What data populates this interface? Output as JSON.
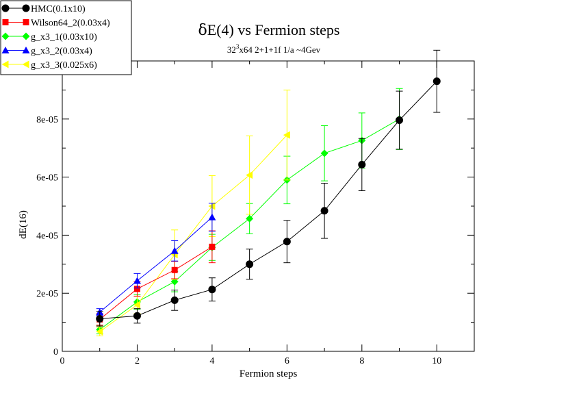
{
  "chart_data": {
    "type": "line",
    "title_symbol": "δ",
    "title_rest": "E(4) vs Fermion steps",
    "subtitle_base": "32",
    "subtitle_sup": "3",
    "subtitle_rest": "x64 2+1+1f 1/a ~4Gev",
    "xlabel": "Fermion steps",
    "ylabel": "dE(16)",
    "xlim": [
      0,
      11
    ],
    "ylim": [
      0,
      0.0001
    ],
    "xticks": [
      0,
      2,
      4,
      6,
      8,
      10
    ],
    "xtick_labels": [
      "0",
      "2",
      "4",
      "6",
      "8",
      "10"
    ],
    "yticks": [
      0,
      2e-05,
      4e-05,
      6e-05,
      8e-05
    ],
    "ytick_labels": [
      "0",
      "2e-05",
      "4e-05",
      "6e-05",
      "8e-05"
    ],
    "legend_position": "top-left",
    "series": [
      {
        "name": "HMC(0.1x10)",
        "color": "#000000",
        "marker": "circle",
        "x": [
          1,
          2,
          3,
          4,
          5,
          6,
          7,
          8,
          9,
          10
        ],
        "y": [
          1.12e-05,
          1.22e-05,
          1.76e-05,
          2.13e-05,
          3e-05,
          3.78e-05,
          4.84e-05,
          6.43e-05,
          7.96e-05,
          9.3e-05
        ],
        "err": [
          2.5e-06,
          2.5e-06,
          3.5e-06,
          4e-06,
          5.2e-06,
          7.3e-06,
          9.5e-06,
          9e-06,
          1e-05,
          1.07e-05
        ]
      },
      {
        "name": "Wilson64_2(0.03x4)",
        "color": "#ff0000",
        "marker": "square",
        "x": [
          1,
          2,
          3,
          4
        ],
        "y": [
          1.1e-05,
          2.15e-05,
          2.8e-05,
          3.6e-05
        ],
        "err": [
          2e-06,
          2.5e-06,
          3e-06,
          5.5e-06
        ]
      },
      {
        "name": "g_x3_1(0.03x10)",
        "color": "#00ff00",
        "marker": "diamond",
        "x": [
          1,
          2,
          3,
          4,
          5,
          6,
          7,
          8,
          9
        ],
        "y": [
          7.5e-06,
          1.7e-05,
          2.4e-05,
          3.58e-05,
          4.57e-05,
          5.9e-05,
          6.82e-05,
          7.26e-05,
          8e-05
        ],
        "err": [
          1.5e-06,
          2.5e-06,
          3.5e-06,
          4.5e-06,
          5.2e-06,
          8.2e-06,
          9.5e-06,
          9.5e-06,
          1.05e-05
        ]
      },
      {
        "name": "g_x3_2(0.03x4)",
        "color": "#0000ff",
        "marker": "triangle",
        "x": [
          1,
          2,
          3,
          4
        ],
        "y": [
          1.35e-05,
          2.43e-05,
          3.46e-05,
          4.62e-05
        ],
        "err": [
          1.2e-06,
          2.5e-06,
          3.5e-06,
          4.8e-06
        ]
      },
      {
        "name": "g_x3_3(0.025x6)",
        "color": "#ffff00",
        "marker": "triangle-left",
        "x": [
          1,
          2,
          3,
          4,
          5,
          6
        ],
        "y": [
          6.8e-06,
          1.6e-05,
          3.33e-05,
          5e-05,
          6.07e-05,
          7.45e-05
        ],
        "err": [
          1.5e-06,
          3e-06,
          8.5e-06,
          1.05e-05,
          1.35e-05,
          1.55e-05
        ]
      }
    ]
  }
}
